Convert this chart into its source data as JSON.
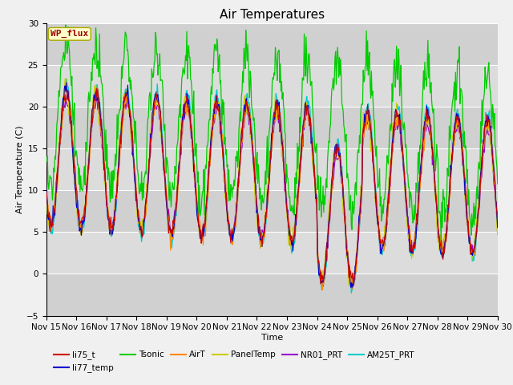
{
  "title": "Air Temperatures",
  "xlabel": "Time",
  "ylabel": "Air Temperature (C)",
  "ylim": [
    -5,
    30
  ],
  "x_tick_labels": [
    "Nov 15",
    "Nov 16",
    "Nov 17",
    "Nov 18",
    "Nov 19",
    "Nov 20",
    "Nov 21",
    "Nov 22",
    "Nov 23",
    "Nov 24",
    "Nov 25",
    "Nov 26",
    "Nov 27",
    "Nov 28",
    "Nov 29",
    "Nov 30"
  ],
  "legend_entries": [
    "li75_t",
    "li77_temp",
    "Tsonic",
    "AirT",
    "PanelTemp",
    "NR01_PRT",
    "AM25T_PRT"
  ],
  "colors": {
    "li75_t": "#cc0000",
    "li77_temp": "#0000cc",
    "Tsonic": "#00cc00",
    "AirT": "#ff8800",
    "PanelTemp": "#cccc00",
    "NR01_PRT": "#9900cc",
    "AM25T_PRT": "#00cccc"
  },
  "wp_flux_box_facecolor": "#ffffcc",
  "wp_flux_text_color": "#990000",
  "plot_bg_color": "#d8d8d8",
  "band_color_dark": "#cccccc",
  "band_color_light": "#e0e0e0",
  "fig_bg_color": "#f0f0f0",
  "title_fontsize": 11,
  "label_fontsize": 8,
  "tick_fontsize": 7.5
}
